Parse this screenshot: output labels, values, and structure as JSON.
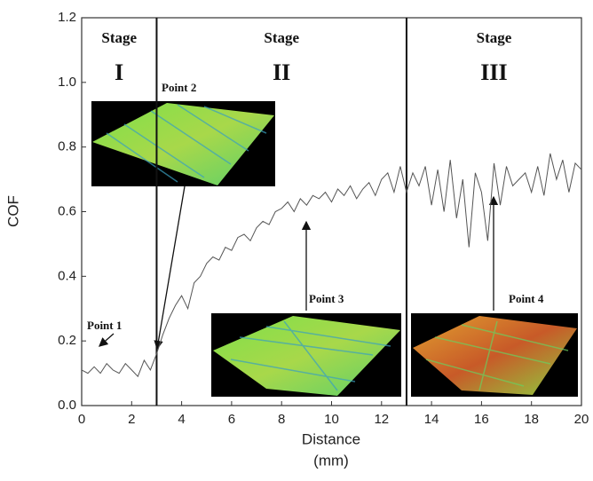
{
  "chart_data": {
    "type": "line",
    "xlabel": "Distance",
    "xlabel_unit": "(mm)",
    "ylabel": "COF",
    "xlim": [
      0,
      20
    ],
    "xticks": [
      0,
      2,
      4,
      6,
      8,
      10,
      12,
      14,
      16,
      18,
      20
    ],
    "ylim": [
      0,
      1.2
    ],
    "yticks": [
      {
        "value": 0,
        "label": "0.0"
      },
      0.2,
      0.4,
      0.6,
      0.8,
      {
        "value": 1,
        "label": "1.0"
      },
      1.2
    ],
    "stage_boundaries": [
      3,
      13
    ],
    "stages": [
      {
        "title": "Stage",
        "numeral": "I"
      },
      {
        "title": "Stage",
        "numeral": "II"
      },
      {
        "title": "Stage",
        "numeral": "III"
      }
    ],
    "annotations": [
      "Point 1",
      "Point 2",
      "Point 3",
      "Point 4"
    ],
    "series": [
      {
        "color": "#555555",
        "x": [
          0,
          0.25,
          0.5,
          0.75,
          1,
          1.25,
          1.5,
          1.75,
          2,
          2.25,
          2.5,
          2.75,
          3,
          3.25,
          3.5,
          3.75,
          4,
          4.25,
          4.5,
          4.75,
          5,
          5.25,
          5.5,
          5.75,
          6,
          6.25,
          6.5,
          6.75,
          7,
          7.25,
          7.5,
          7.75,
          8,
          8.25,
          8.5,
          8.75,
          9,
          9.25,
          9.5,
          9.75,
          10,
          10.25,
          10.5,
          10.75,
          11,
          11.25,
          11.5,
          11.75,
          12,
          12.25,
          12.5,
          12.75,
          13,
          13.25,
          13.5,
          13.75,
          14,
          14.25,
          14.5,
          14.75,
          15,
          15.25,
          15.5,
          15.75,
          16,
          16.25,
          16.5,
          16.75,
          17,
          17.25,
          17.5,
          17.75,
          18,
          18.25,
          18.5,
          18.75,
          19,
          19.25,
          19.5,
          19.75,
          20
        ],
        "values": [
          0.11,
          0.1,
          0.12,
          0.1,
          0.13,
          0.11,
          0.1,
          0.13,
          0.11,
          0.09,
          0.14,
          0.11,
          0.16,
          0.22,
          0.27,
          0.31,
          0.34,
          0.3,
          0.38,
          0.4,
          0.44,
          0.46,
          0.45,
          0.49,
          0.48,
          0.52,
          0.53,
          0.51,
          0.55,
          0.57,
          0.56,
          0.6,
          0.61,
          0.63,
          0.6,
          0.64,
          0.62,
          0.65,
          0.64,
          0.66,
          0.63,
          0.67,
          0.65,
          0.68,
          0.64,
          0.67,
          0.69,
          0.65,
          0.7,
          0.72,
          0.66,
          0.74,
          0.66,
          0.72,
          0.68,
          0.74,
          0.62,
          0.73,
          0.6,
          0.76,
          0.58,
          0.7,
          0.49,
          0.72,
          0.66,
          0.51,
          0.75,
          0.62,
          0.74,
          0.68,
          0.7,
          0.72,
          0.66,
          0.74,
          0.65,
          0.78,
          0.7,
          0.76,
          0.66,
          0.75,
          0.73
        ]
      }
    ]
  }
}
